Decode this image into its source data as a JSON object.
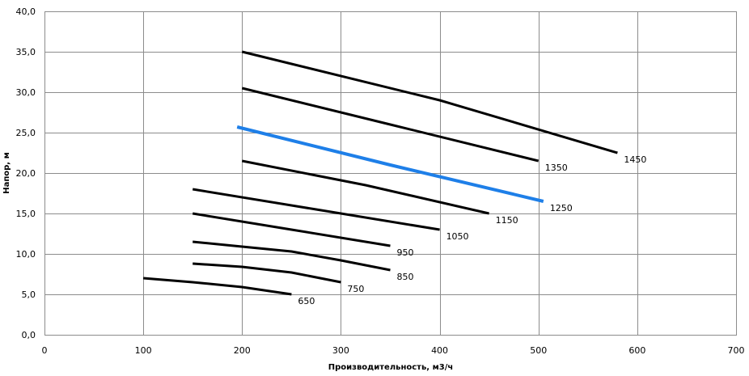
{
  "chart_data": {
    "type": "line",
    "title": "",
    "xlabel": "Производительность,  м3/ч",
    "ylabel": "Напор, м",
    "xlim": [
      0,
      700
    ],
    "ylim": [
      0,
      40
    ],
    "x_ticks": [
      "0",
      "100",
      "200",
      "300",
      "400",
      "500",
      "600",
      "700"
    ],
    "y_ticks": [
      "0,0",
      "5,0",
      "10,0",
      "15,0",
      "20,0",
      "25,0",
      "30,0",
      "35,0",
      "40,0"
    ],
    "grid": true,
    "legend": "none",
    "colors": {
      "default": "#000000",
      "highlight": "#1e7fe8"
    },
    "series": [
      {
        "name": "650",
        "color": "#000000",
        "x": [
          100,
          150,
          200,
          250
        ],
        "y": [
          7.0,
          6.5,
          5.9,
          5.0
        ]
      },
      {
        "name": "750",
        "color": "#000000",
        "x": [
          150,
          200,
          250,
          300
        ],
        "y": [
          8.8,
          8.4,
          7.7,
          6.5
        ]
      },
      {
        "name": "850",
        "color": "#000000",
        "x": [
          150,
          200,
          250,
          300,
          350
        ],
        "y": [
          11.5,
          10.9,
          10.3,
          9.2,
          8.0
        ]
      },
      {
        "name": "950",
        "color": "#000000",
        "x": [
          150,
          250,
          350
        ],
        "y": [
          15.0,
          13.0,
          11.0
        ]
      },
      {
        "name": "1050",
        "color": "#000000",
        "x": [
          150,
          275,
          400
        ],
        "y": [
          18.0,
          15.5,
          13.0
        ]
      },
      {
        "name": "1150",
        "color": "#000000",
        "x": [
          200,
          325,
          450
        ],
        "y": [
          21.5,
          18.5,
          15.0
        ]
      },
      {
        "name": "1250",
        "color": "#1e7fe8",
        "x": [
          195,
          350,
          505
        ],
        "y": [
          25.7,
          21.0,
          16.5
        ]
      },
      {
        "name": "1350",
        "color": "#000000",
        "x": [
          200,
          350,
          500
        ],
        "y": [
          30.5,
          26.0,
          21.5
        ]
      },
      {
        "name": "1450",
        "color": "#000000",
        "x": [
          200,
          400,
          580
        ],
        "y": [
          35.0,
          29.0,
          22.5
        ]
      }
    ]
  }
}
